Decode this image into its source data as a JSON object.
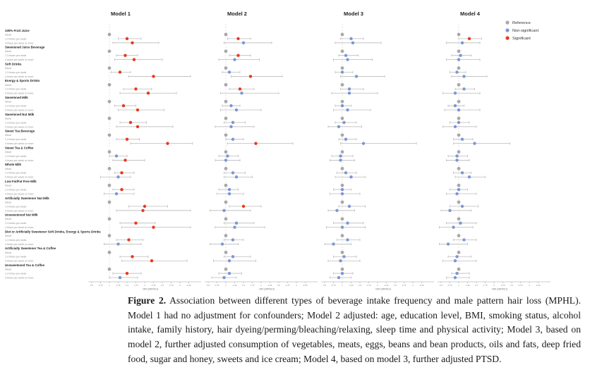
{
  "figure": {
    "panel_titles": [
      "Model 1",
      "Model 2",
      "Model 3",
      "Model 4"
    ],
    "legend": [
      {
        "label": "Reference",
        "color": "#a8a8a8"
      },
      {
        "label": "Non-significant",
        "color": "#7c96d6"
      },
      {
        "label": "Significant",
        "color": "#e8391d"
      }
    ],
    "axis": {
      "label": "OR (95%CI)",
      "ticks": [
        0.5,
        0.75,
        1,
        1.25,
        1.5,
        1.75,
        2,
        2.25,
        2.5,
        2.75,
        3,
        3.25
      ],
      "range": [
        0.4,
        3.6
      ],
      "reference_value": 1
    },
    "colors": {
      "ref": "#a8a8a8",
      "nonsig": "#7c96d6",
      "sig": "#e8391d",
      "ci_line": "#bcbcbc",
      "ref_line": "#d8d8d8",
      "axis": "#9a9a9a"
    }
  },
  "chart_data": {
    "type": "scatter",
    "subtype": "forest-plot",
    "x_unit": "odds ratio",
    "row_labels": [
      "Never",
      "1-3 times per week",
      "4 times per week or more"
    ],
    "note": "Each group: Never = gray reference dot at OR 1.0; two rows below give [estimate, ci_low, ci_high, significant(1)/nonsignificant(0)] per model.",
    "groups": [
      {
        "name": "100% Fruit Juice",
        "m1": [
          [
            1.5,
            1.25,
            1.9,
            1
          ],
          [
            1.65,
            1.1,
            2.4,
            1
          ]
        ],
        "m2": [
          [
            1.35,
            1.05,
            1.7,
            1
          ],
          [
            1.5,
            0.95,
            2.3,
            0
          ]
        ],
        "m3": [
          [
            1.25,
            0.95,
            1.6,
            0
          ],
          [
            1.3,
            0.8,
            2.1,
            0
          ]
        ],
        "m4": [
          [
            1.3,
            1.0,
            1.65,
            1
          ],
          [
            1.1,
            0.65,
            1.6,
            0
          ]
        ]
      },
      {
        "name": "Sweetened Juice Beverage",
        "m1": [
          [
            1.45,
            1.2,
            1.8,
            1
          ],
          [
            1.7,
            1.15,
            2.5,
            1
          ]
        ],
        "m2": [
          [
            1.35,
            1.1,
            1.7,
            1
          ],
          [
            1.25,
            0.8,
            1.95,
            0
          ]
        ],
        "m3": [
          [
            1.1,
            0.9,
            1.45,
            0
          ],
          [
            1.15,
            0.75,
            1.85,
            0
          ]
        ],
        "m4": [
          [
            1.05,
            0.8,
            1.35,
            0
          ],
          [
            1.0,
            0.65,
            1.6,
            0
          ]
        ]
      },
      {
        "name": "Soft Drinks",
        "m1": [
          [
            1.3,
            1.05,
            1.6,
            1
          ],
          [
            2.25,
            1.55,
            3.3,
            1
          ]
        ],
        "m2": [
          [
            1.1,
            0.9,
            1.4,
            0
          ],
          [
            1.7,
            1.15,
            2.6,
            1
          ]
        ],
        "m3": [
          [
            1.0,
            0.8,
            1.3,
            0
          ],
          [
            1.4,
            0.95,
            2.2,
            0
          ]
        ],
        "m4": [
          [
            0.95,
            0.75,
            1.2,
            0
          ],
          [
            1.15,
            0.8,
            1.8,
            0
          ]
        ]
      },
      {
        "name": "Energy & Sports Drinks",
        "m1": [
          [
            1.75,
            1.4,
            2.2,
            1
          ],
          [
            2.1,
            1.3,
            2.9,
            1
          ]
        ],
        "m2": [
          [
            1.4,
            1.1,
            1.8,
            1
          ],
          [
            1.45,
            0.85,
            2.5,
            0
          ]
        ],
        "m3": [
          [
            1.2,
            0.95,
            1.6,
            0
          ],
          [
            1.2,
            0.7,
            2.0,
            0
          ]
        ],
        "m4": [
          [
            1.15,
            0.9,
            1.45,
            0
          ],
          [
            0.9,
            0.55,
            1.6,
            0
          ]
        ]
      },
      {
        "name": "Sweetened Milk",
        "m1": [
          [
            1.4,
            1.15,
            1.75,
            1
          ],
          [
            1.8,
            1.25,
            2.55,
            1
          ]
        ],
        "m2": [
          [
            1.15,
            0.9,
            1.4,
            0
          ],
          [
            1.3,
            0.85,
            2.0,
            0
          ]
        ],
        "m3": [
          [
            1.0,
            0.8,
            1.25,
            0
          ],
          [
            1.15,
            0.75,
            1.8,
            0
          ]
        ],
        "m4": [
          [
            0.9,
            0.7,
            1.15,
            0
          ],
          [
            1.0,
            0.6,
            1.6,
            0
          ]
        ]
      },
      {
        "name": "Sweetened Nut Milk",
        "m1": [
          [
            1.6,
            1.3,
            2.05,
            1
          ],
          [
            1.8,
            1.2,
            2.8,
            1
          ]
        ],
        "m2": [
          [
            1.2,
            0.95,
            1.55,
            0
          ],
          [
            1.15,
            0.7,
            1.8,
            0
          ]
        ],
        "m3": [
          [
            1.05,
            0.8,
            1.4,
            0
          ],
          [
            0.9,
            0.6,
            1.55,
            0
          ]
        ],
        "m4": [
          [
            1.0,
            0.75,
            1.3,
            0
          ],
          [
            0.9,
            0.55,
            1.5,
            0
          ]
        ]
      },
      {
        "name": "Sweet Tea Beverage",
        "m1": [
          [
            1.5,
            1.2,
            1.85,
            1
          ],
          [
            2.65,
            1.6,
            3.35,
            1
          ]
        ],
        "m2": [
          [
            1.2,
            1.0,
            1.5,
            0
          ],
          [
            1.85,
            1.05,
            2.9,
            1
          ]
        ],
        "m3": [
          [
            1.1,
            0.9,
            1.4,
            0
          ],
          [
            1.6,
            0.95,
            3.1,
            0
          ]
        ],
        "m4": [
          [
            1.1,
            0.85,
            1.4,
            0
          ],
          [
            1.45,
            0.85,
            2.45,
            0
          ]
        ]
      },
      {
        "name": "Sweet Tea & Coffee",
        "m1": [
          [
            1.2,
            1.0,
            1.5,
            0
          ],
          [
            1.45,
            1.1,
            2.0,
            1
          ]
        ],
        "m2": [
          [
            1.05,
            0.8,
            1.35,
            0
          ],
          [
            1.0,
            0.7,
            1.4,
            0
          ]
        ],
        "m3": [
          [
            0.95,
            0.7,
            1.3,
            0
          ],
          [
            0.95,
            0.65,
            1.35,
            0
          ]
        ],
        "m4": [
          [
            0.95,
            0.7,
            1.25,
            0
          ],
          [
            0.95,
            0.65,
            1.3,
            0
          ]
        ]
      },
      {
        "name": "Whole Milk",
        "m1": [
          [
            1.35,
            1.15,
            1.7,
            1
          ],
          [
            1.25,
            0.75,
            1.6,
            0
          ]
        ],
        "m2": [
          [
            1.2,
            0.95,
            1.55,
            0
          ],
          [
            1.3,
            0.95,
            1.75,
            0
          ]
        ],
        "m3": [
          [
            1.1,
            0.85,
            1.4,
            0
          ],
          [
            1.25,
            0.8,
            1.65,
            0
          ]
        ],
        "m4": [
          [
            1.1,
            0.85,
            1.35,
            0
          ],
          [
            1.3,
            0.9,
            1.75,
            0
          ]
        ]
      },
      {
        "name": "Low Fat/Fat Free Milk",
        "m1": [
          [
            1.35,
            1.1,
            1.7,
            1
          ],
          [
            1.2,
            0.85,
            1.7,
            0
          ]
        ],
        "m2": [
          [
            1.1,
            0.8,
            1.35,
            0
          ],
          [
            1.1,
            0.75,
            1.5,
            0
          ]
        ],
        "m3": [
          [
            1.0,
            0.75,
            1.25,
            0
          ],
          [
            1.0,
            0.65,
            1.5,
            0
          ]
        ],
        "m4": [
          [
            1.0,
            0.75,
            1.25,
            0
          ],
          [
            0.95,
            0.65,
            1.5,
            0
          ]
        ]
      },
      {
        "name": "Artificially Sweetener Nut Milk",
        "m1": [
          [
            2.0,
            1.55,
            2.65,
            1
          ],
          [
            1.95,
            1.2,
            3.3,
            1
          ]
        ],
        "m2": [
          [
            1.5,
            1.1,
            2.0,
            1
          ],
          [
            0.95,
            0.55,
            1.7,
            0
          ]
        ],
        "m3": [
          [
            1.2,
            0.9,
            1.65,
            0
          ],
          [
            0.85,
            0.6,
            1.35,
            0
          ]
        ],
        "m4": [
          [
            1.1,
            0.75,
            1.55,
            0
          ],
          [
            0.75,
            0.5,
            1.35,
            0
          ]
        ]
      },
      {
        "name": "Unsweetened Nut Milk",
        "m1": [
          [
            1.75,
            1.3,
            2.3,
            1
          ],
          [
            2.25,
            1.35,
            3.3,
            1
          ]
        ],
        "m2": [
          [
            1.3,
            0.95,
            1.8,
            0
          ],
          [
            1.25,
            0.7,
            2.1,
            0
          ]
        ],
        "m3": [
          [
            1.15,
            0.75,
            1.6,
            0
          ],
          [
            1.0,
            0.55,
            1.65,
            0
          ]
        ],
        "m4": [
          [
            1.05,
            0.65,
            1.5,
            0
          ],
          [
            0.85,
            0.45,
            1.4,
            0
          ]
        ]
      },
      {
        "name": "Diet or Artificially Sweetener Soft Drinks, Energy & Sports Drinks",
        "m1": [
          [
            1.55,
            1.2,
            1.95,
            1
          ],
          [
            1.25,
            0.85,
            1.9,
            0
          ]
        ],
        "m2": [
          [
            1.2,
            0.95,
            1.5,
            0
          ],
          [
            0.9,
            0.55,
            1.35,
            0
          ]
        ],
        "m3": [
          [
            1.15,
            0.85,
            1.5,
            0
          ],
          [
            0.75,
            0.5,
            1.25,
            0
          ]
        ],
        "m4": [
          [
            1.15,
            0.85,
            1.5,
            0
          ],
          [
            0.7,
            0.45,
            1.25,
            0
          ]
        ]
      },
      {
        "name": "Artificially Sweetener Tea & Coffee",
        "m1": [
          [
            1.65,
            1.3,
            2.1,
            1
          ],
          [
            2.2,
            1.35,
            3.2,
            1
          ]
        ],
        "m2": [
          [
            1.2,
            0.95,
            1.7,
            0
          ],
          [
            1.1,
            0.65,
            1.85,
            0
          ]
        ],
        "m3": [
          [
            1.05,
            0.75,
            1.4,
            0
          ],
          [
            0.95,
            0.6,
            1.5,
            0
          ]
        ],
        "m4": [
          [
            0.95,
            0.7,
            1.35,
            0
          ],
          [
            0.9,
            0.55,
            1.5,
            0
          ]
        ]
      },
      {
        "name": "Unsweetened Tea & Coffee",
        "m1": [
          [
            1.5,
            1.1,
            1.9,
            1
          ],
          [
            1.3,
            1.0,
            1.8,
            0
          ]
        ],
        "m2": [
          [
            1.1,
            0.8,
            1.45,
            0
          ],
          [
            0.95,
            0.6,
            1.3,
            0
          ]
        ],
        "m3": [
          [
            1.0,
            0.75,
            1.3,
            0
          ],
          [
            0.9,
            0.65,
            1.25,
            0
          ]
        ],
        "m4": [
          [
            0.95,
            0.8,
            1.3,
            0
          ],
          [
            0.9,
            0.65,
            1.3,
            0
          ]
        ]
      }
    ]
  },
  "caption": {
    "label": "Figure 2.",
    "text": " Association between different types of beverage intake frequency and male pattern hair loss (MPHL). Model 1 had no adjustment for confounders; Model 2 adjusted: age, education level, BMI, smoking status, alcohol intake, family history, hair dyeing/perming/bleaching/relaxing, sleep time and physical activity; Model 3, based on model 2, further adjusted consumption of vegetables, meats, eggs, beans and bean products, oils and fats, deep fried food, sugar and honey, sweets and ice cream; Model 4, based on model 3, further adjusted PTSD."
  }
}
